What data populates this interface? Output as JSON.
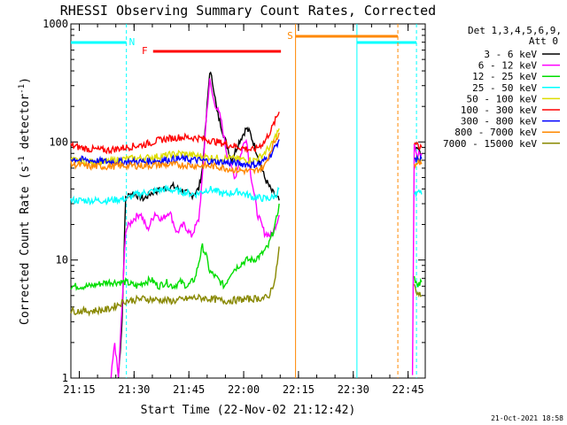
{
  "chart_data": {
    "type": "line",
    "title": "RHESSI Observing Summary Count Rates, Corrected",
    "xlabel": "Start Time (22-Nov-02 21:12:42)",
    "ylabel_main": "Corrected Count Rate (s",
    "ylabel_sup1": "-1",
    "ylabel_mid": " detector",
    "ylabel_sup2": "-1",
    "ylabel_end": ")",
    "y_scale": "log",
    "ylim": [
      1,
      1000
    ],
    "xlim_minutes_after_21:12:42": [
      0,
      97
    ],
    "x_tick_labels": [
      "21:15",
      "21:30",
      "21:45",
      "22:00",
      "22:15",
      "22:30",
      "22:45"
    ],
    "y_tick_labels": [
      "1",
      "10",
      "100",
      "1000"
    ],
    "detector_note_line1": "Det 1,3,4,5,6,9,",
    "detector_note_line2": "Att 0",
    "legend": [
      {
        "label": "3 - 6 keV",
        "color": "#000000"
      },
      {
        "label": "6 - 12 keV",
        "color": "#ff00ff"
      },
      {
        "label": "12 - 25 keV",
        "color": "#00dd00"
      },
      {
        "label": "25 - 50 keV",
        "color": "#00ffff"
      },
      {
        "label": "50 - 100 keV",
        "color": "#dddd00"
      },
      {
        "label": "100 - 300 keV",
        "color": "#ff0000"
      },
      {
        "label": "300 - 800 keV",
        "color": "#0000ff"
      },
      {
        "label": "800 - 7000 keV",
        "color": "#ff8800"
      },
      {
        "label": "7000 - 15000 keV",
        "color": "#888800"
      }
    ],
    "flag_markers": [
      {
        "label": "N",
        "color": "#00ffff"
      },
      {
        "label": "F",
        "color": "#ff0000"
      },
      {
        "label": "S",
        "color": "#ff8800"
      }
    ],
    "series": [
      {
        "name": "3 - 6 keV",
        "color": "#000000",
        "points": [
          [
            13,
            1
          ],
          [
            14,
            3
          ],
          [
            15,
            34
          ],
          [
            17,
            37
          ],
          [
            20,
            33
          ],
          [
            22,
            37
          ],
          [
            25,
            40
          ],
          [
            28,
            42
          ],
          [
            31,
            38
          ],
          [
            33,
            35
          ],
          [
            35,
            40
          ],
          [
            36,
            60
          ],
          [
            37,
            150
          ],
          [
            38,
            400
          ],
          [
            39,
            300
          ],
          [
            40,
            180
          ],
          [
            42,
            110
          ],
          [
            44,
            70
          ],
          [
            46,
            100
          ],
          [
            48,
            130
          ],
          [
            49,
            120
          ],
          [
            51,
            80
          ],
          [
            53,
            50
          ],
          [
            55,
            38
          ],
          [
            57,
            32
          ]
        ]
      },
      {
        "name": "6 - 12 keV",
        "color": "#ff00ff",
        "points": [
          [
            11,
            1
          ],
          [
            12,
            2
          ],
          [
            13,
            1
          ],
          [
            14,
            4
          ],
          [
            15,
            18
          ],
          [
            17,
            22
          ],
          [
            19,
            25
          ],
          [
            21,
            18
          ],
          [
            23,
            25
          ],
          [
            25,
            22
          ],
          [
            27,
            26
          ],
          [
            29,
            17
          ],
          [
            31,
            20
          ],
          [
            33,
            16
          ],
          [
            35,
            22
          ],
          [
            36,
            50
          ],
          [
            37,
            150
          ],
          [
            38,
            330
          ],
          [
            39,
            230
          ],
          [
            41,
            160
          ],
          [
            43,
            70
          ],
          [
            45,
            50
          ],
          [
            47,
            90
          ],
          [
            48,
            110
          ],
          [
            49,
            60
          ],
          [
            51,
            25
          ],
          [
            53,
            17
          ],
          [
            55,
            16
          ],
          [
            57,
            24
          ]
        ]
      },
      {
        "name": "12 - 25 keV",
        "color": "#00dd00",
        "points": [
          [
            0,
            6
          ],
          [
            5,
            6
          ],
          [
            10,
            6.5
          ],
          [
            15,
            6.5
          ],
          [
            18,
            6
          ],
          [
            20,
            6.5
          ],
          [
            22,
            6.8
          ],
          [
            24,
            6
          ],
          [
            26,
            6.5
          ],
          [
            28,
            6
          ],
          [
            30,
            6.5
          ],
          [
            32,
            6
          ],
          [
            34,
            7
          ],
          [
            36,
            13
          ],
          [
            37,
            11
          ],
          [
            38,
            8
          ],
          [
            40,
            7
          ],
          [
            42,
            6
          ],
          [
            44,
            8
          ],
          [
            46,
            9
          ],
          [
            48,
            10
          ],
          [
            50,
            10
          ],
          [
            52,
            11
          ],
          [
            54,
            13
          ],
          [
            56,
            20
          ],
          [
            57,
            30
          ]
        ]
      },
      {
        "name": "25 - 50 keV",
        "color": "#00ffff",
        "points": [
          [
            0,
            32
          ],
          [
            5,
            32
          ],
          [
            10,
            32
          ],
          [
            15,
            33
          ],
          [
            18,
            36
          ],
          [
            22,
            38
          ],
          [
            26,
            40
          ],
          [
            30,
            38
          ],
          [
            34,
            36
          ],
          [
            38,
            40
          ],
          [
            42,
            36
          ],
          [
            46,
            38
          ],
          [
            50,
            34
          ],
          [
            54,
            33
          ],
          [
            56,
            35
          ],
          [
            57,
            40
          ]
        ]
      },
      {
        "name": "50 - 100 keV",
        "color": "#dddd00",
        "points": [
          [
            0,
            70
          ],
          [
            5,
            68
          ],
          [
            10,
            68
          ],
          [
            15,
            72
          ],
          [
            20,
            73
          ],
          [
            25,
            76
          ],
          [
            30,
            80
          ],
          [
            35,
            76
          ],
          [
            40,
            73
          ],
          [
            45,
            72
          ],
          [
            50,
            70
          ],
          [
            52,
            75
          ],
          [
            55,
            95
          ],
          [
            57,
            130
          ]
        ]
      },
      {
        "name": "100 - 300 keV",
        "color": "#ff0000",
        "points": [
          [
            0,
            93
          ],
          [
            5,
            87
          ],
          [
            10,
            85
          ],
          [
            15,
            90
          ],
          [
            20,
            95
          ],
          [
            25,
            105
          ],
          [
            30,
            110
          ],
          [
            35,
            108
          ],
          [
            40,
            100
          ],
          [
            45,
            92
          ],
          [
            50,
            85
          ],
          [
            53,
            100
          ],
          [
            55,
            130
          ],
          [
            57,
            180
          ]
        ]
      },
      {
        "name": "300 - 800 keV",
        "color": "#0000ff",
        "points": [
          [
            0,
            72
          ],
          [
            5,
            70
          ],
          [
            10,
            68
          ],
          [
            15,
            68
          ],
          [
            20,
            68
          ],
          [
            25,
            70
          ],
          [
            30,
            72
          ],
          [
            35,
            70
          ],
          [
            40,
            68
          ],
          [
            45,
            66
          ],
          [
            50,
            64
          ],
          [
            52,
            66
          ],
          [
            55,
            80
          ],
          [
            57,
            105
          ]
        ]
      },
      {
        "name": "800 - 7000 keV",
        "color": "#ff8800",
        "points": [
          [
            0,
            65
          ],
          [
            5,
            62
          ],
          [
            10,
            62
          ],
          [
            15,
            63
          ],
          [
            20,
            63
          ],
          [
            25,
            64
          ],
          [
            30,
            64
          ],
          [
            35,
            63
          ],
          [
            40,
            62
          ],
          [
            45,
            58
          ],
          [
            50,
            56
          ],
          [
            53,
            62
          ],
          [
            55,
            90
          ],
          [
            57,
            120
          ]
        ]
      },
      {
        "name": "7000 - 15000 keV",
        "color": "#888800",
        "points": [
          [
            0,
            3.7
          ],
          [
            5,
            3.7
          ],
          [
            10,
            3.8
          ],
          [
            15,
            4.5
          ],
          [
            20,
            4.7
          ],
          [
            24,
            4.6
          ],
          [
            28,
            4.5
          ],
          [
            30,
            4.6
          ],
          [
            34,
            4.8
          ],
          [
            38,
            4.7
          ],
          [
            42,
            4.5
          ],
          [
            46,
            4.6
          ],
          [
            50,
            4.7
          ],
          [
            54,
            4.8
          ],
          [
            56,
            7
          ],
          [
            57,
            13
          ]
        ]
      },
      {
        "name": "3 - 6 keV",
        "color": "#000000",
        "segment": "late",
        "points": [
          [
            94,
            90
          ],
          [
            95,
            85
          ],
          [
            96,
            80
          ]
        ]
      },
      {
        "name": "6 - 12 keV",
        "color": "#ff00ff",
        "segment": "late",
        "points": [
          [
            93.5,
            1.1
          ],
          [
            94,
            90
          ],
          [
            95,
            80
          ],
          [
            96,
            80
          ]
        ]
      },
      {
        "name": "25 - 50 keV",
        "color": "#00ffff",
        "segment": "late",
        "points": [
          [
            94,
            35
          ],
          [
            95,
            38
          ],
          [
            96,
            36
          ]
        ]
      },
      {
        "name": "50 - 100 keV",
        "color": "#dddd00",
        "segment": "late",
        "points": [
          [
            94,
            75
          ],
          [
            95,
            72
          ],
          [
            96,
            70
          ]
        ]
      },
      {
        "name": "100 - 300 keV",
        "color": "#ff0000",
        "segment": "late",
        "points": [
          [
            94,
            95
          ],
          [
            95,
            92
          ],
          [
            96,
            90
          ]
        ]
      },
      {
        "name": "300 - 800 keV",
        "color": "#0000ff",
        "segment": "late",
        "points": [
          [
            94,
            72
          ],
          [
            95,
            70
          ],
          [
            96,
            72
          ]
        ]
      },
      {
        "name": "800 - 7000 keV",
        "color": "#ff8800",
        "segment": "late",
        "points": [
          [
            94,
            65
          ],
          [
            95,
            66
          ],
          [
            96,
            65
          ]
        ]
      },
      {
        "name": "7000 - 15000 keV",
        "color": "#888800",
        "segment": "late",
        "points": [
          [
            94,
            6
          ],
          [
            95,
            5
          ],
          [
            96,
            5
          ]
        ]
      },
      {
        "name": "12 - 25 keV",
        "color": "#00dd00",
        "segment": "late",
        "points": [
          [
            94,
            7
          ],
          [
            95,
            6
          ],
          [
            96,
            6.5
          ]
        ]
      }
    ]
  },
  "footer": {
    "timestamp": "21-Oct-2021 18:58"
  }
}
